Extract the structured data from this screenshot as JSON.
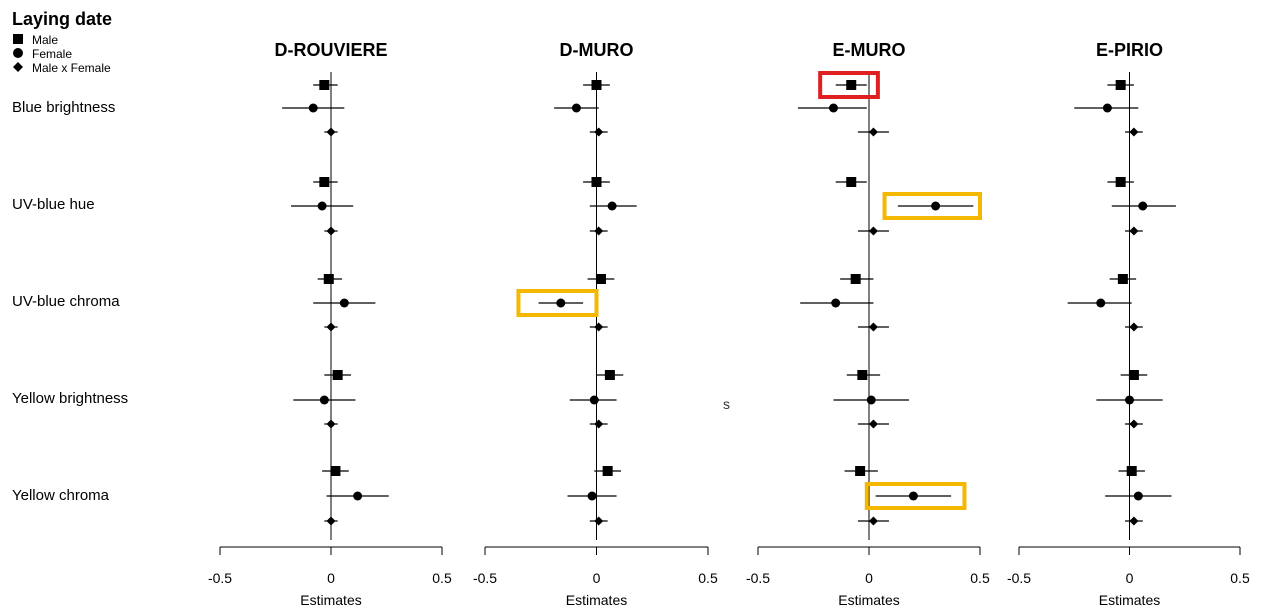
{
  "legend": {
    "title": "Laying date",
    "items": [
      {
        "label": "Male",
        "shape": "square"
      },
      {
        "label": "Female",
        "shape": "circle"
      },
      {
        "label": "Male x Female",
        "shape": "diamond"
      }
    ]
  },
  "stray_text": "s",
  "colors": {
    "highlight_red": "#e02020",
    "highlight_orange": "#f5b800",
    "ink": "#000000"
  },
  "chart_data": {
    "type": "scatter",
    "variant": "coefficient-forest-plot",
    "xlabel": "Estimates",
    "xlim": [
      -0.5,
      0.5
    ],
    "xticks": [
      "-0.5",
      "0",
      "0.5"
    ],
    "reference_line": 0,
    "rows": [
      "Blue brightness",
      "UV-blue hue",
      "UV-blue chroma",
      "Yellow brightness",
      "Yellow chroma"
    ],
    "terms": [
      "Male",
      "Female",
      "Male x Female"
    ],
    "panels": [
      {
        "title": "D-ROUVIERE",
        "estimates": [
          [
            {
              "est": -0.03,
              "lo": -0.08,
              "hi": 0.03
            },
            {
              "est": -0.08,
              "lo": -0.22,
              "hi": 0.06
            },
            {
              "est": 0.0,
              "lo": -0.03,
              "hi": 0.03
            }
          ],
          [
            {
              "est": -0.03,
              "lo": -0.08,
              "hi": 0.03
            },
            {
              "est": -0.04,
              "lo": -0.18,
              "hi": 0.1
            },
            {
              "est": 0.0,
              "lo": -0.03,
              "hi": 0.03
            }
          ],
          [
            {
              "est": -0.01,
              "lo": -0.06,
              "hi": 0.05
            },
            {
              "est": 0.06,
              "lo": -0.08,
              "hi": 0.2
            },
            {
              "est": 0.0,
              "lo": -0.03,
              "hi": 0.03
            }
          ],
          [
            {
              "est": 0.03,
              "lo": -0.03,
              "hi": 0.09
            },
            {
              "est": -0.03,
              "lo": -0.17,
              "hi": 0.11
            },
            {
              "est": 0.0,
              "lo": -0.03,
              "hi": 0.03
            }
          ],
          [
            {
              "est": 0.02,
              "lo": -0.04,
              "hi": 0.08
            },
            {
              "est": 0.12,
              "lo": -0.02,
              "hi": 0.26
            },
            {
              "est": 0.0,
              "lo": -0.03,
              "hi": 0.03
            }
          ]
        ],
        "highlights": []
      },
      {
        "title": "D-MURO",
        "estimates": [
          [
            {
              "est": 0.0,
              "lo": -0.06,
              "hi": 0.06
            },
            {
              "est": -0.09,
              "lo": -0.19,
              "hi": 0.01
            },
            {
              "est": 0.01,
              "lo": -0.03,
              "hi": 0.05
            }
          ],
          [
            {
              "est": 0.0,
              "lo": -0.06,
              "hi": 0.06
            },
            {
              "est": 0.07,
              "lo": -0.03,
              "hi": 0.18
            },
            {
              "est": 0.01,
              "lo": -0.03,
              "hi": 0.05
            }
          ],
          [
            {
              "est": 0.02,
              "lo": -0.04,
              "hi": 0.08
            },
            {
              "est": -0.16,
              "lo": -0.26,
              "hi": -0.06
            },
            {
              "est": 0.01,
              "lo": -0.03,
              "hi": 0.05
            }
          ],
          [
            {
              "est": 0.06,
              "lo": 0.0,
              "hi": 0.12
            },
            {
              "est": -0.01,
              "lo": -0.12,
              "hi": 0.09
            },
            {
              "est": 0.01,
              "lo": -0.03,
              "hi": 0.05
            }
          ],
          [
            {
              "est": 0.05,
              "lo": -0.01,
              "hi": 0.11
            },
            {
              "est": -0.02,
              "lo": -0.13,
              "hi": 0.09
            },
            {
              "est": 0.01,
              "lo": -0.03,
              "hi": 0.05
            }
          ]
        ],
        "highlights": [
          {
            "row": 2,
            "term": 1,
            "color": "orange",
            "left": -0.35,
            "right": 0.0
          }
        ]
      },
      {
        "title": "E-MURO",
        "estimates": [
          [
            {
              "est": -0.08,
              "lo": -0.15,
              "hi": -0.01
            },
            {
              "est": -0.16,
              "lo": -0.32,
              "hi": -0.01
            },
            {
              "est": 0.02,
              "lo": -0.05,
              "hi": 0.09
            }
          ],
          [
            {
              "est": -0.08,
              "lo": -0.15,
              "hi": -0.01
            },
            {
              "est": 0.3,
              "lo": 0.13,
              "hi": 0.47
            },
            {
              "est": 0.02,
              "lo": -0.05,
              "hi": 0.09
            }
          ],
          [
            {
              "est": -0.06,
              "lo": -0.13,
              "hi": 0.02
            },
            {
              "est": -0.15,
              "lo": -0.31,
              "hi": 0.02
            },
            {
              "est": 0.02,
              "lo": -0.05,
              "hi": 0.09
            }
          ],
          [
            {
              "est": -0.03,
              "lo": -0.1,
              "hi": 0.05
            },
            {
              "est": 0.01,
              "lo": -0.16,
              "hi": 0.18
            },
            {
              "est": 0.02,
              "lo": -0.05,
              "hi": 0.09
            }
          ],
          [
            {
              "est": -0.04,
              "lo": -0.11,
              "hi": 0.04
            },
            {
              "est": 0.2,
              "lo": 0.03,
              "hi": 0.37
            },
            {
              "est": 0.02,
              "lo": -0.05,
              "hi": 0.09
            }
          ]
        ],
        "highlights": [
          {
            "row": 0,
            "term": 0,
            "color": "red",
            "left": -0.22,
            "right": 0.04
          },
          {
            "row": 1,
            "term": 1,
            "color": "orange",
            "left": 0.07,
            "right": 0.5
          },
          {
            "row": 4,
            "term": 1,
            "color": "orange",
            "left": -0.01,
            "right": 0.43
          }
        ]
      },
      {
        "title": "E-PIRIO",
        "estimates": [
          [
            {
              "est": -0.04,
              "lo": -0.1,
              "hi": 0.02
            },
            {
              "est": -0.1,
              "lo": -0.25,
              "hi": 0.04
            },
            {
              "est": 0.02,
              "lo": -0.02,
              "hi": 0.06
            }
          ],
          [
            {
              "est": -0.04,
              "lo": -0.1,
              "hi": 0.02
            },
            {
              "est": 0.06,
              "lo": -0.08,
              "hi": 0.21
            },
            {
              "est": 0.02,
              "lo": -0.02,
              "hi": 0.06
            }
          ],
          [
            {
              "est": -0.03,
              "lo": -0.09,
              "hi": 0.03
            },
            {
              "est": -0.13,
              "lo": -0.28,
              "hi": 0.01
            },
            {
              "est": 0.02,
              "lo": -0.02,
              "hi": 0.06
            }
          ],
          [
            {
              "est": 0.02,
              "lo": -0.04,
              "hi": 0.08
            },
            {
              "est": 0.0,
              "lo": -0.15,
              "hi": 0.15
            },
            {
              "est": 0.02,
              "lo": -0.02,
              "hi": 0.06
            }
          ],
          [
            {
              "est": 0.01,
              "lo": -0.05,
              "hi": 0.07
            },
            {
              "est": 0.04,
              "lo": -0.11,
              "hi": 0.19
            },
            {
              "est": 0.02,
              "lo": -0.02,
              "hi": 0.06
            }
          ]
        ],
        "highlights": []
      }
    ]
  }
}
